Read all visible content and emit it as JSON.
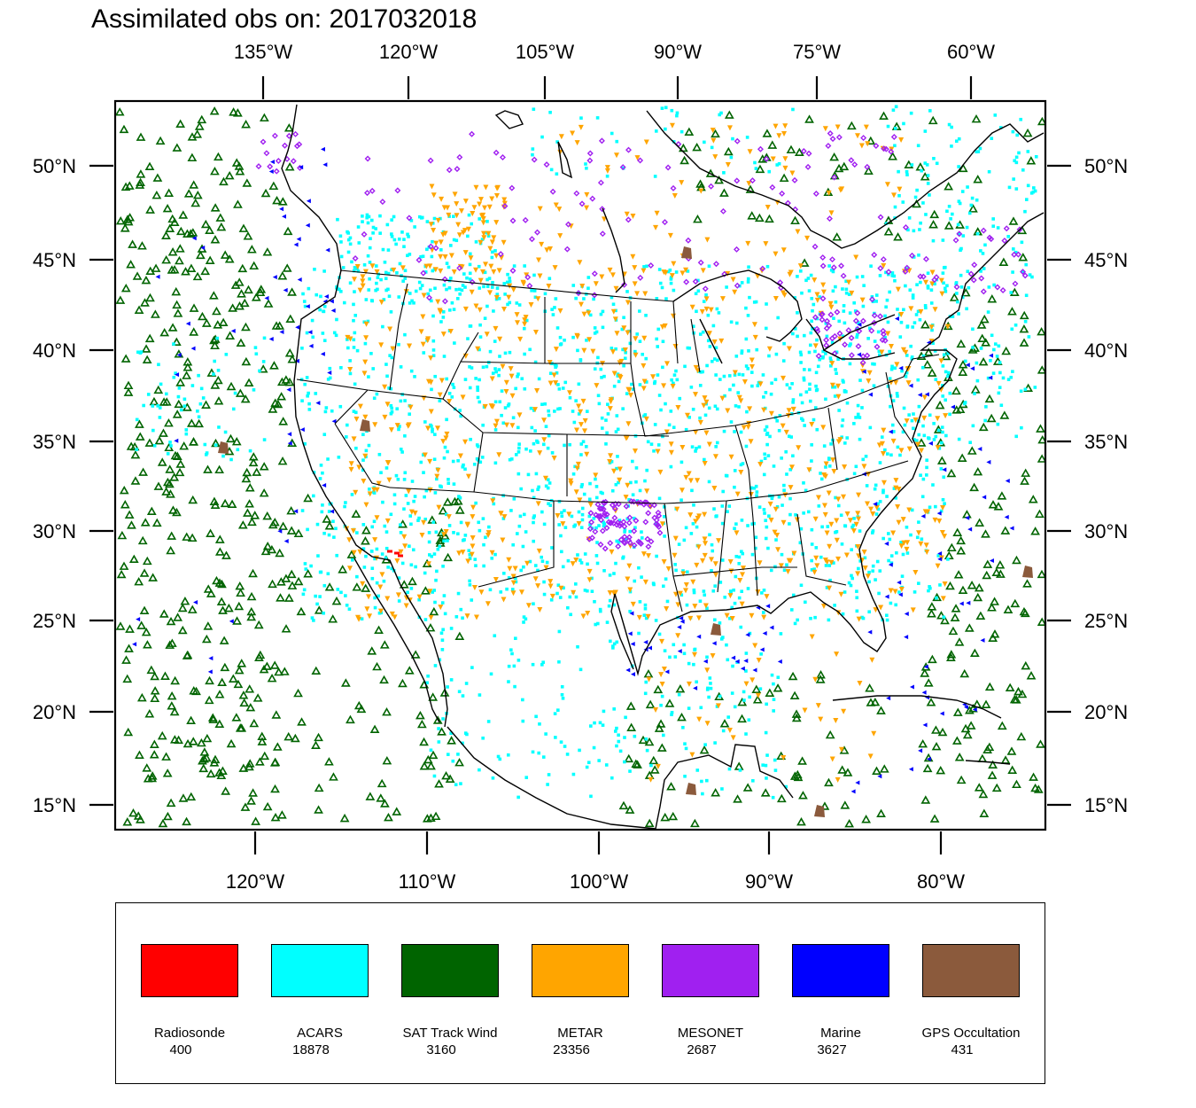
{
  "title": "Assimilated obs on: 2017032018",
  "top_lon_labels": [
    "135°W",
    "120°W",
    "105°W",
    "90°W",
    "75°W",
    "60°W"
  ],
  "bottom_lon_labels": [
    "120°W",
    "110°W",
    "100°W",
    "90°W",
    "80°W"
  ],
  "lat_labels": [
    "50°N",
    "45°N",
    "40°N",
    "35°N",
    "30°N",
    "25°N",
    "20°N",
    "15°N"
  ],
  "legend": [
    {
      "name": "Radiosonde",
      "count": "400",
      "color": "#ff0000"
    },
    {
      "name": "ACARS",
      "count": "18878",
      "color": "#00ffff"
    },
    {
      "name": "SAT Track Wind",
      "count": "3160",
      "color": "#006400"
    },
    {
      "name": "METAR",
      "count": "23356",
      "color": "#ffa500"
    },
    {
      "name": "MESONET",
      "count": "2687",
      "color": "#a020f0"
    },
    {
      "name": "Marine",
      "count": "3627",
      "color": "#0000ff"
    },
    {
      "name": "GPS Occultation",
      "count": "431",
      "color": "#8b5a3c"
    }
  ]
}
